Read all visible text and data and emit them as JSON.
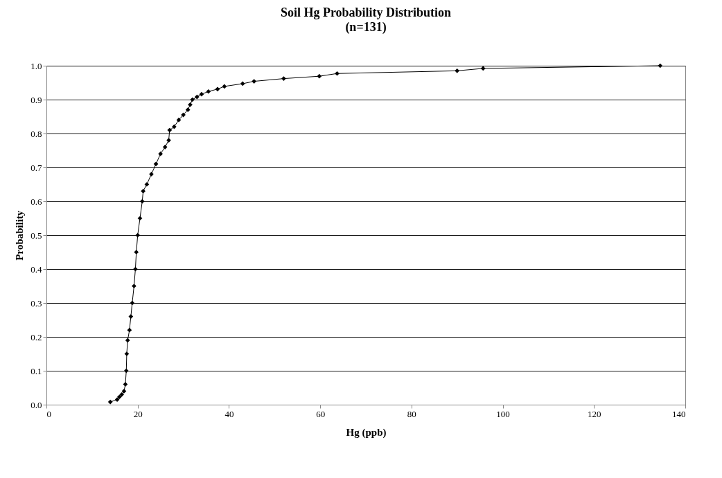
{
  "chart_data": {
    "type": "line",
    "title": "Soil Hg Probability Distribution",
    "subtitle": "(n=131)",
    "xlabel": "Hg (ppb)",
    "ylabel": "Probability",
    "series": [
      {
        "color": "#000000",
        "x": [
          14,
          15.5,
          16,
          16.5,
          17,
          17.3,
          17.5,
          17.6,
          17.8,
          18.2,
          18.5,
          18.8,
          19.2,
          19.5,
          19.7,
          20,
          20.5,
          21,
          21.2,
          22,
          23,
          24,
          25,
          26,
          26.8,
          27,
          28,
          29,
          30,
          31,
          31.5,
          32,
          33,
          34,
          35.5,
          37.5,
          39,
          43,
          45.5,
          52,
          59.8,
          63.7,
          90,
          95.7,
          134.5
        ],
        "values": [
          0.008,
          0.015,
          0.023,
          0.03,
          0.04,
          0.06,
          0.1,
          0.15,
          0.19,
          0.22,
          0.26,
          0.3,
          0.35,
          0.4,
          0.45,
          0.5,
          0.55,
          0.6,
          0.63,
          0.65,
          0.68,
          0.71,
          0.74,
          0.76,
          0.78,
          0.81,
          0.82,
          0.84,
          0.855,
          0.87,
          0.885,
          0.9,
          0.908,
          0.916,
          0.924,
          0.931,
          0.939,
          0.947,
          0.954,
          0.962,
          0.969,
          0.977,
          0.985,
          0.992,
          1.0
        ]
      }
    ],
    "xlim": [
      0,
      140
    ],
    "xticks": [
      0,
      20,
      40,
      60,
      80,
      100,
      120,
      140
    ],
    "ylim": [
      0,
      1
    ],
    "yticks": [
      {
        "value": 0,
        "label": "0.0"
      },
      0.1,
      0.2,
      0.3,
      0.4,
      0.5,
      0.6,
      0.7,
      0.8,
      0.9,
      {
        "value": 1,
        "label": "1.0"
      }
    ],
    "grid": "y",
    "marker": "diamond",
    "line_style": "solid"
  }
}
